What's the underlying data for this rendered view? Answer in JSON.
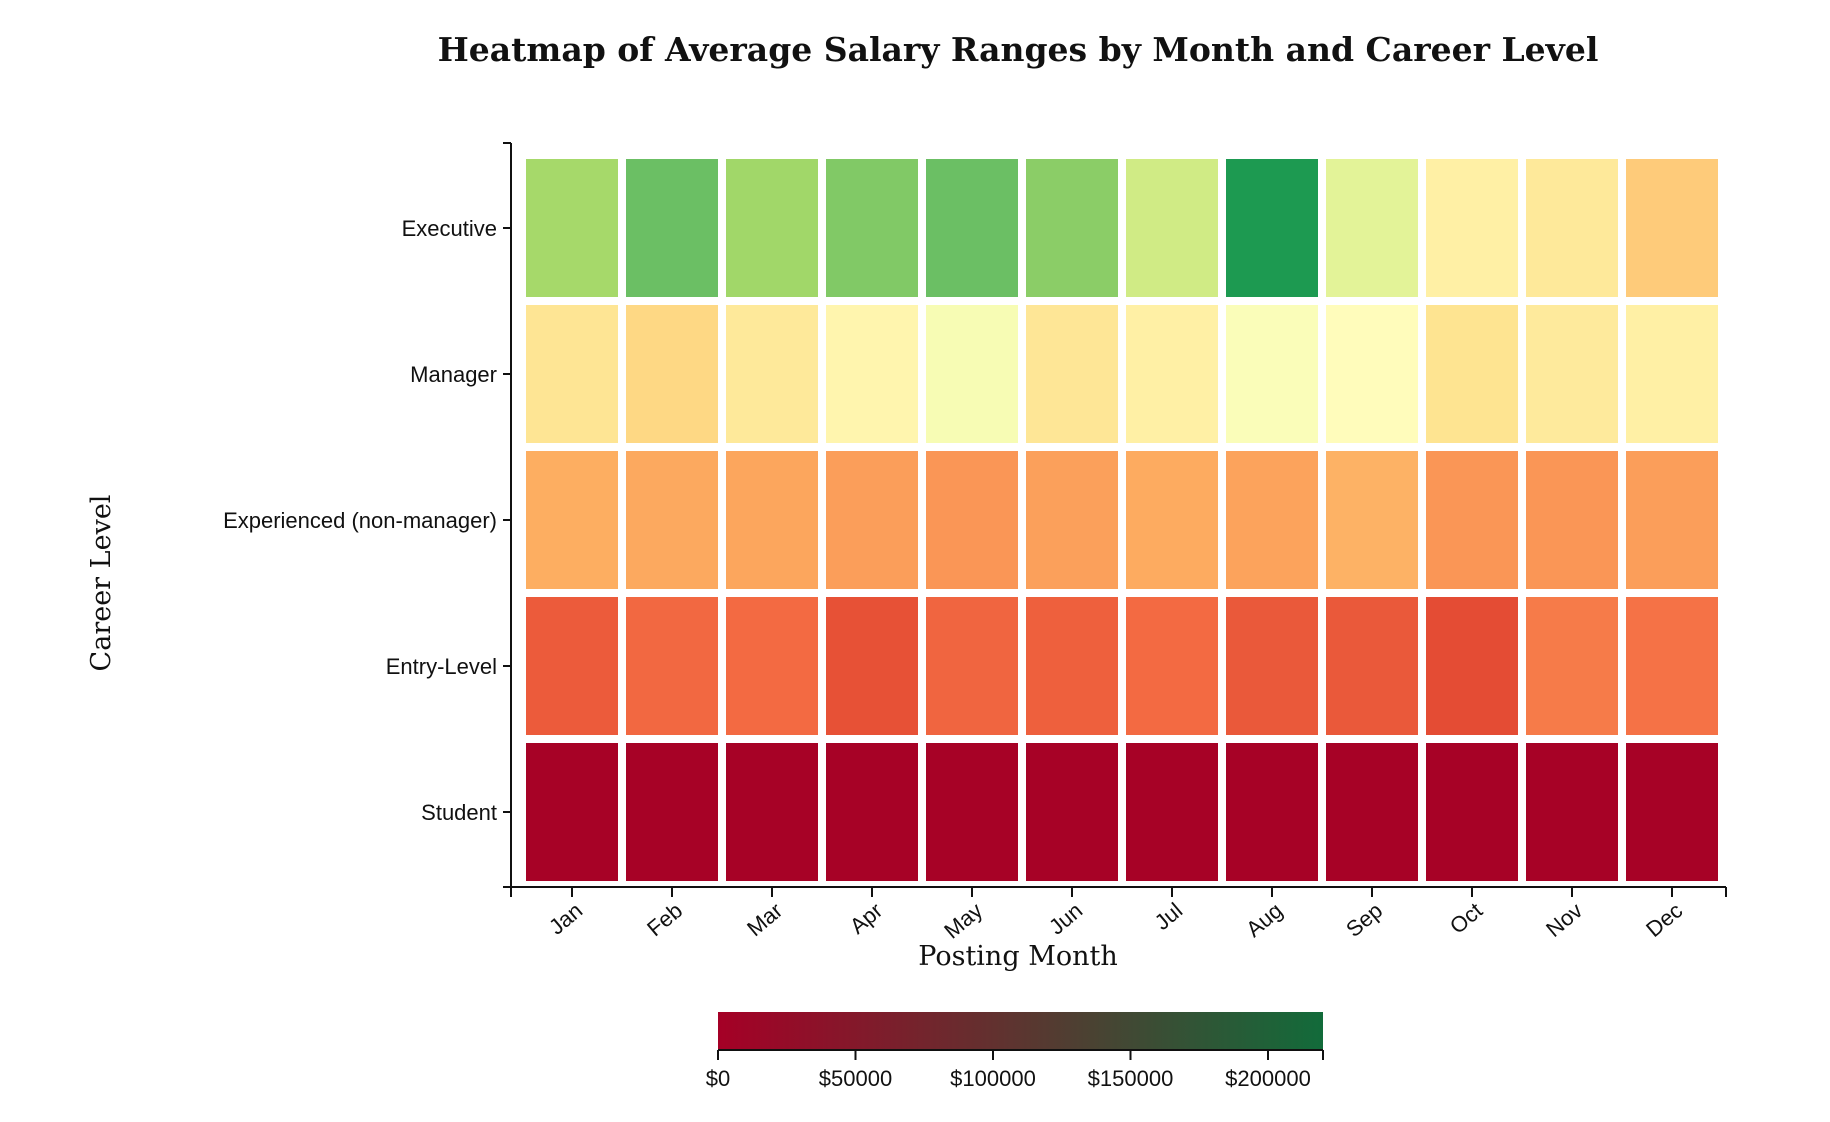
{
  "chart_data": {
    "type": "heatmap",
    "title": "Heatmap of Average Salary Ranges by Month and Career Level",
    "xlabel": "Posting Month",
    "ylabel": "Career Level",
    "x": [
      "Jan",
      "Feb",
      "Mar",
      "Apr",
      "May",
      "Jun",
      "Jul",
      "Aug",
      "Sep",
      "Oct",
      "Nov",
      "Dec"
    ],
    "y": [
      "Executive",
      "Manager",
      "Experienced (non-manager)",
      "Entry-Level",
      "Student"
    ],
    "values": [
      [
        168000,
        190000,
        170000,
        182000,
        190000,
        178000,
        148000,
        215000,
        138000,
        108000,
        103000,
        86000
      ],
      [
        100000,
        92000,
        103000,
        112000,
        125000,
        101000,
        108000,
        123000,
        118000,
        99000,
        104000,
        108000
      ],
      [
        72000,
        70000,
        69000,
        66000,
        63000,
        67000,
        71000,
        68000,
        74000,
        63000,
        63000,
        66000
      ],
      [
        41000,
        46000,
        47000,
        37000,
        45000,
        43000,
        47000,
        40000,
        40000,
        35000,
        53000,
        50000
      ],
      [
        1000,
        1000,
        1000,
        1000,
        1000,
        1000,
        1000,
        1000,
        1000,
        1000,
        1000,
        1000
      ]
    ],
    "value_format": "currency",
    "colorscale": {
      "stops": [
        [
          0.0,
          "#a50026"
        ],
        [
          0.1,
          "#d73027"
        ],
        [
          0.2,
          "#f46d43"
        ],
        [
          0.3,
          "#fdae61"
        ],
        [
          0.4,
          "#fee08b"
        ],
        [
          0.5,
          "#ffffbf"
        ],
        [
          0.6,
          "#d9ef8b"
        ],
        [
          0.7,
          "#a6d96a"
        ],
        [
          0.8,
          "#66bd63"
        ],
        [
          0.9,
          "#1a9850"
        ],
        [
          1.0,
          "#006837"
        ]
      ],
      "range": [
        0,
        240000
      ]
    },
    "colorbar": {
      "orientation": "horizontal",
      "placement": "bottom",
      "range": [
        0,
        220000
      ],
      "gradient": [
        "#a50026",
        "#126b3a"
      ],
      "ticks": [
        0,
        50000,
        100000,
        150000,
        200000
      ],
      "tick_labels": [
        "$0",
        "$50000",
        "$100000",
        "$150000",
        "$200000"
      ]
    },
    "grid": false
  }
}
